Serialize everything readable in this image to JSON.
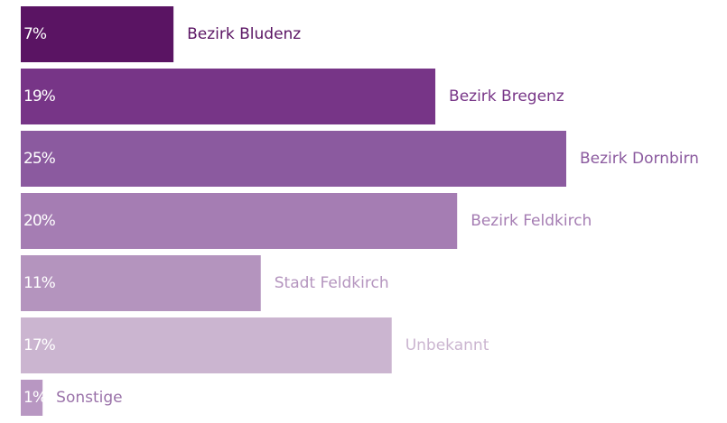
{
  "chart_data": {
    "type": "hbar",
    "categories": [
      "Bezirk Bludenz",
      "Bezirk Bregenz",
      "Bezirk Dornbirn",
      "Bezirk Feldkirch",
      "Stadt Feldkirch",
      "Unbekannt",
      "Sonstige"
    ],
    "values": [
      7,
      19,
      25,
      20,
      11,
      17,
      1
    ],
    "value_labels": [
      "7%",
      "19%",
      "25%",
      "20%",
      "11%",
      "17%",
      "1%"
    ],
    "colors": [
      "#5a1463",
      "#773587",
      "#8b5a9f",
      "#a57db3",
      "#b494be",
      "#cbb5d0",
      "#b897c2"
    ]
  }
}
